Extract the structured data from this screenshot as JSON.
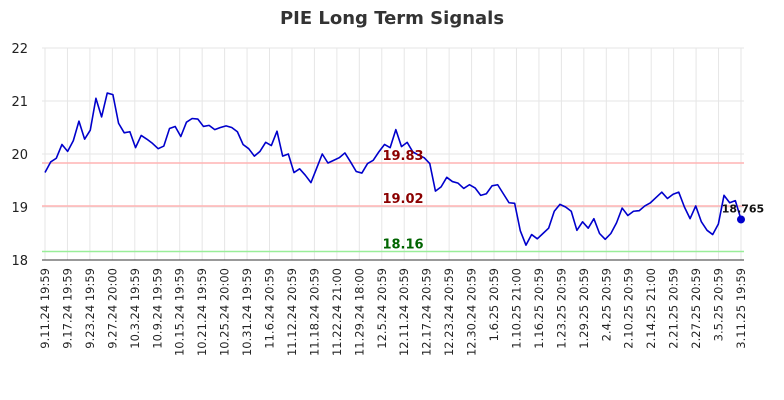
{
  "chart_data": {
    "type": "line",
    "title": "PIE Long Term Signals",
    "xlabel": "",
    "ylabel": "",
    "ylim": [
      18,
      22
    ],
    "yticks": [
      18,
      19,
      20,
      21,
      22
    ],
    "grid": true,
    "x_tick_labels": [
      "9.11.24 19:59",
      "9.17.24 19:59",
      "9.23.24 19:59",
      "9.27.24 20:00",
      "10.3.24 19:59",
      "10.9.24 19:59",
      "10.15.24 19:59",
      "10.21.24 19:59",
      "10.25.24 20:00",
      "10.31.24 19:59",
      "11.6.24 20:59",
      "11.12.24 20:59",
      "11.18.24 20:59",
      "11.22.24 21:00",
      "11.29.24 18:00",
      "12.5.24 20:59",
      "12.11.24 20:59",
      "12.17.24 20:59",
      "12.23.24 20:59",
      "12.30.24 20:59",
      "1.6.25 20:59",
      "1.10.25 21:00",
      "1.16.25 20:59",
      "1.23.25 20:59",
      "1.29.25 20:59",
      "2.4.25 20:59",
      "2.10.25 20:59",
      "2.14.25 21:00",
      "2.21.25 20:59",
      "2.27.25 20:59",
      "3.5.25 20:59",
      "3.11.25 19:59"
    ],
    "reference_lines": [
      {
        "value": 19.83,
        "label": "19.83",
        "color": "#ffb3b3",
        "label_color": "#8b0000"
      },
      {
        "value": 19.02,
        "label": "19.02",
        "color": "#ffb3b3",
        "label_color": "#8b0000"
      },
      {
        "value": 18.16,
        "label": "18.16",
        "color": "#99ee99",
        "label_color": "#006400"
      }
    ],
    "series": [
      {
        "color": "#0000cc",
        "values": [
          19.65,
          19.85,
          19.92,
          20.18,
          20.05,
          20.25,
          20.62,
          20.28,
          20.45,
          21.05,
          20.7,
          21.15,
          21.12,
          20.58,
          20.4,
          20.42,
          20.12,
          20.35,
          20.28,
          20.2,
          20.1,
          20.15,
          20.48,
          20.52,
          20.33,
          20.6,
          20.67,
          20.66,
          20.52,
          20.54,
          20.46,
          20.5,
          20.53,
          20.5,
          20.42,
          20.18,
          20.1,
          19.96,
          20.05,
          20.22,
          20.16,
          20.43,
          19.96,
          20.0,
          19.65,
          19.72,
          19.6,
          19.46,
          19.73,
          20.0,
          19.83,
          19.88,
          19.93,
          20.02,
          19.85,
          19.67,
          19.64,
          19.82,
          19.88,
          20.04,
          20.18,
          20.12,
          20.46,
          20.14,
          20.22,
          20.04,
          19.98,
          19.93,
          19.82,
          19.3,
          19.38,
          19.56,
          19.48,
          19.45,
          19.35,
          19.42,
          19.36,
          19.22,
          19.25,
          19.4,
          19.42,
          19.25,
          19.08,
          19.07,
          18.55,
          18.28,
          18.48,
          18.4,
          18.5,
          18.6,
          18.92,
          19.05,
          19.0,
          18.92,
          18.56,
          18.72,
          18.6,
          18.78,
          18.5,
          18.39,
          18.5,
          18.7,
          18.98,
          18.84,
          18.92,
          18.93,
          19.02,
          19.08,
          19.18,
          19.28,
          19.16,
          19.24,
          19.28,
          19.0,
          18.78,
          19.02,
          18.72,
          18.56,
          18.48,
          18.68,
          19.22,
          19.08,
          19.12,
          18.765
        ]
      }
    ],
    "last_value_label": "18.765"
  }
}
